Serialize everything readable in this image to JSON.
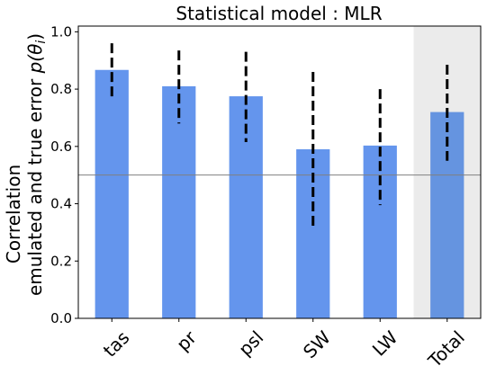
{
  "chart_data": {
    "type": "bar",
    "title": "Statistical model : MLR",
    "ylabel_line1": "Correlation",
    "ylabel_line2_prefix": "emulated and true error ",
    "ylabel_math": "p(θ",
    "ylabel_math_sub": "i",
    "ylabel_math_close": ")",
    "xlabel": "",
    "ylim": [
      0.0,
      1.02
    ],
    "yticks": [
      "0.0",
      "0.2",
      "0.4",
      "0.6",
      "0.8",
      "1.0"
    ],
    "categories": [
      "tas",
      "pr",
      "psl",
      "SW",
      "LW",
      "Total"
    ],
    "values": [
      0.867,
      0.81,
      0.775,
      0.59,
      0.603,
      0.72
    ],
    "error_low": [
      0.765,
      0.68,
      0.615,
      0.315,
      0.395,
      0.55
    ],
    "error_high": [
      0.96,
      0.935,
      0.93,
      0.86,
      0.8,
      0.885
    ],
    "reference_line": 0.5,
    "highlighted_category": "Total",
    "colors": {
      "bar": "#6495ed",
      "bar_total": "#6594e0",
      "highlight_bg": "#ebebeb",
      "error": "#000000",
      "reference_line": "#808080"
    },
    "grid": false,
    "legend": "none"
  }
}
